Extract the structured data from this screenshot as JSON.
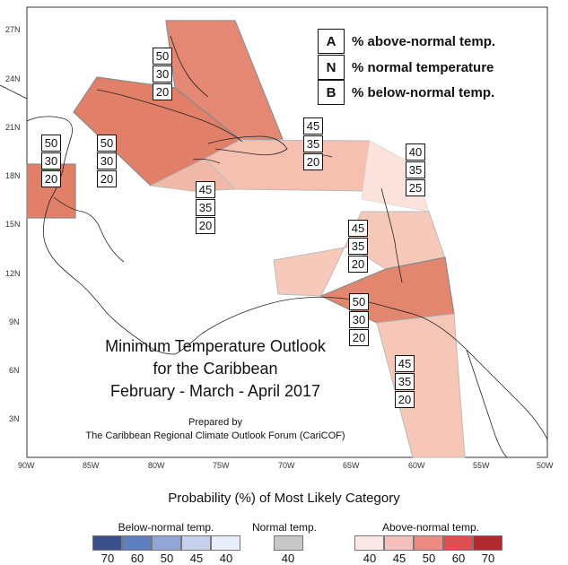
{
  "legend_key": [
    {
      "letter": "A",
      "text": "% above-normal temp."
    },
    {
      "letter": "N",
      "text": "% normal temperature"
    },
    {
      "letter": "B",
      "text": "% below-normal temp."
    }
  ],
  "map_title": [
    "Minimum Temperature Outlook",
    "for the Caribbean",
    "February - March - April 2017"
  ],
  "credit": [
    "Prepared by",
    "The Caribbean Regional Climate Outlook Forum (CariCOF)"
  ],
  "lat_labels": [
    "27N",
    "24N",
    "21N",
    "18N",
    "15N",
    "12N",
    "9N",
    "6N",
    "3N"
  ],
  "lon_labels": [
    "90W",
    "85W",
    "80W",
    "75W",
    "70W",
    "65W",
    "60W",
    "55W",
    "50W"
  ],
  "region_probabilities": [
    {
      "region": "bahamas",
      "values": [
        "50",
        "30",
        "20"
      ]
    },
    {
      "region": "cuba-west",
      "values": [
        "50",
        "30",
        "20"
      ]
    },
    {
      "region": "belize",
      "values": [
        "50",
        "30",
        "20"
      ]
    },
    {
      "region": "hispaniola-pr",
      "values": [
        "45",
        "35",
        "20"
      ]
    },
    {
      "region": "jamaica-south",
      "values": [
        "45",
        "35",
        "20"
      ]
    },
    {
      "region": "leeward-islands",
      "values": [
        "40",
        "35",
        "25"
      ]
    },
    {
      "region": "windward-islands",
      "values": [
        "45",
        "35",
        "20"
      ]
    },
    {
      "region": "trinidad-south",
      "values": [
        "50",
        "30",
        "20"
      ]
    },
    {
      "region": "guianas",
      "values": [
        "45",
        "35",
        "20"
      ]
    }
  ],
  "probability_legend": {
    "title": "Probability (%) of Most Likely Category",
    "below": {
      "label": "Below-normal temp.",
      "ticks": [
        "70",
        "60",
        "50",
        "45",
        "40"
      ],
      "colors": [
        "#3a4f8a",
        "#5f7fc0",
        "#92a6d6",
        "#c6d1ec",
        "#e8eef9"
      ]
    },
    "normal": {
      "label": "Normal temp.",
      "ticks": [
        "40"
      ],
      "colors": [
        "#c8c8c8"
      ]
    },
    "above": {
      "label": "Above-normal temp.",
      "ticks": [
        "40",
        "45",
        "50",
        "60",
        "70"
      ],
      "colors": [
        "#fbe8e6",
        "#f5c0bb",
        "#ec8a84",
        "#dc5054",
        "#b02a31"
      ]
    }
  }
}
